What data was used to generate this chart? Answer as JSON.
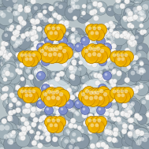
{
  "fig_size": [
    1.89,
    1.89
  ],
  "dpi": 100,
  "bg_color": "#b8c4c8",
  "framework_color": "#a0b0b8",
  "framework_color2": "#8898a5",
  "framework_edge_color": "#607078",
  "sulfur_color": "#f0b800",
  "sulfur_color2": "#e8a000",
  "sulfur_edge_color": "#b07800",
  "nitrogen_color": "#8090cc",
  "nitrogen_edge_color": "#4858a0",
  "hydrogen_color": "#f0f0f0",
  "hydrogen_edge_color": "#b8b8b8",
  "white_pore_color": "#e8eef0",
  "image_size": 189
}
